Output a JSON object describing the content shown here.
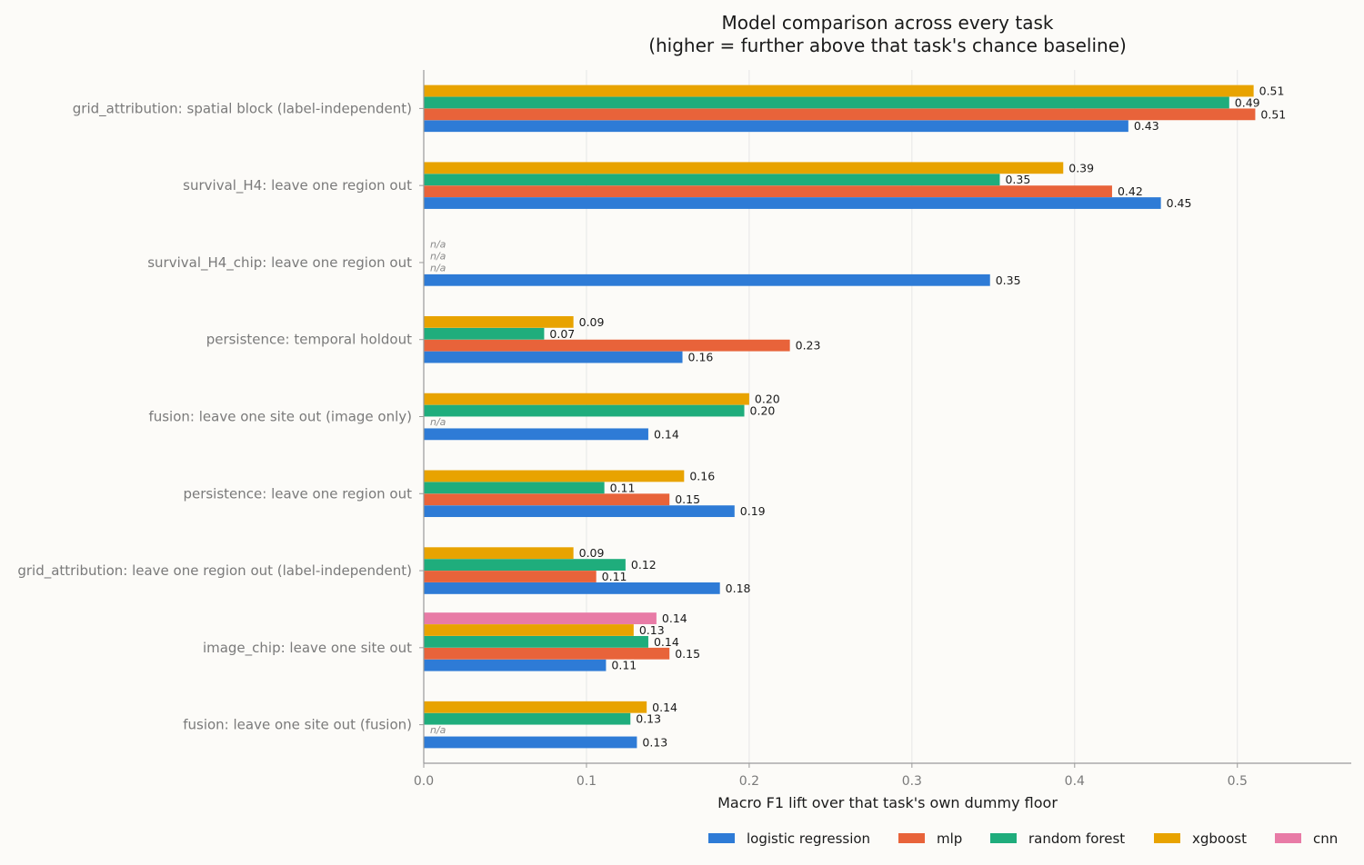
{
  "chart_data": {
    "type": "bar",
    "orientation": "horizontal",
    "title_lines": [
      "Model comparison across every task",
      "(higher = further above that task's chance baseline)"
    ],
    "xlabel": "Macro F1 lift over that task's own dummy floor",
    "ylabel": "",
    "xlim": [
      0,
      0.57
    ],
    "xticks": [
      "0.0",
      "0.1",
      "0.2",
      "0.3",
      "0.4",
      "0.5"
    ],
    "grid": "vertical",
    "legend_position": "bottom",
    "missing_label": "n/a",
    "categories": [
      "grid_attribution: spatial block (label-independent)",
      "survival_H4: leave one region out",
      "survival_H4_chip: leave one region out",
      "persistence: temporal holdout",
      "fusion: leave one site out (image only)",
      "persistence: leave one region out",
      "grid_attribution: leave one region out (label-independent)",
      "image_chip: leave one site out",
      "fusion: leave one site out (fusion)"
    ],
    "series": [
      {
        "name": "logistic regression",
        "color": "#2e7bd6",
        "values": [
          0.433,
          0.453,
          0.348,
          0.159,
          0.138,
          0.191,
          0.182,
          0.112,
          0.131
        ],
        "labels": [
          "0.43",
          "0.45",
          "0.35",
          "0.16",
          "0.14",
          "0.19",
          "0.18",
          "0.11",
          "0.13"
        ]
      },
      {
        "name": "mlp",
        "color": "#e8633a",
        "values": [
          0.511,
          0.423,
          null,
          0.225,
          null,
          0.151,
          0.106,
          0.151,
          null
        ],
        "labels": [
          "0.51",
          "0.42",
          "",
          "0.23",
          "",
          "0.15",
          "0.11",
          "0.15",
          ""
        ]
      },
      {
        "name": "random forest",
        "color": "#1fad7c",
        "values": [
          0.495,
          0.354,
          null,
          0.074,
          0.197,
          0.111,
          0.124,
          0.138,
          0.127
        ],
        "labels": [
          "0.49",
          "0.35",
          "",
          "0.07",
          "0.20",
          "0.11",
          "0.12",
          "0.14",
          "0.13"
        ]
      },
      {
        "name": "xgboost",
        "color": "#e8a300",
        "values": [
          0.51,
          0.393,
          null,
          0.092,
          0.2,
          0.16,
          0.092,
          0.129,
          0.137
        ],
        "labels": [
          "0.51",
          "0.39",
          "",
          "0.09",
          "0.20",
          "0.16",
          "0.09",
          "0.13",
          "0.14"
        ]
      },
      {
        "name": "cnn",
        "color": "#e87ba6",
        "values": [
          null,
          null,
          null,
          null,
          null,
          null,
          null,
          0.143,
          null
        ],
        "labels": [
          "",
          "",
          "",
          "",
          "",
          "",
          "",
          "0.14",
          ""
        ]
      }
    ]
  }
}
